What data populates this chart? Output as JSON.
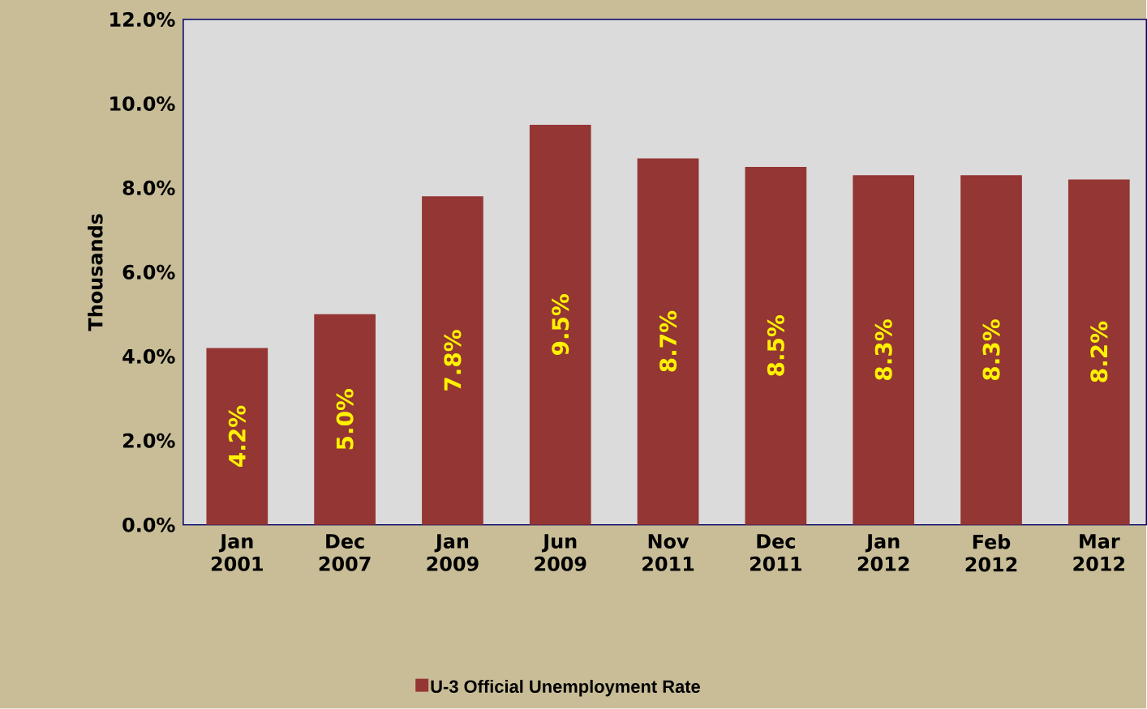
{
  "chart_data": {
    "type": "bar",
    "categories": [
      "Jan 2001",
      "Dec 2007",
      "Jan 2009",
      "Jun 2009",
      "Nov 2011",
      "Dec 2011",
      "Jan 2012",
      "Feb 2012",
      "Mar 2012"
    ],
    "series": [
      {
        "name": "U-3 Official Unemployment Rate",
        "color": "#943634",
        "values": [
          4.2,
          5.0,
          7.8,
          9.5,
          8.7,
          8.5,
          8.3,
          8.3,
          8.2
        ],
        "value_labels": [
          "4.2%",
          "5.0%",
          "7.8%",
          "9.5%",
          "8.7%",
          "8.5%",
          "8.3%",
          "8.3%",
          "8.2%"
        ]
      }
    ],
    "ylabel": "Thousands",
    "ylim": [
      0,
      12
    ],
    "yticks": [
      {
        "value": 0,
        "label": "0.0%"
      },
      {
        "value": 2,
        "label": "2.0%"
      },
      {
        "value": 4,
        "label": "4.0%"
      },
      {
        "value": 6,
        "label": "6.0%"
      },
      {
        "value": 8,
        "label": "8.0%"
      },
      {
        "value": 10,
        "label": "10.0%"
      },
      {
        "value": 12,
        "label": "12.0%"
      }
    ],
    "grid": false,
    "legend": "bottom"
  }
}
